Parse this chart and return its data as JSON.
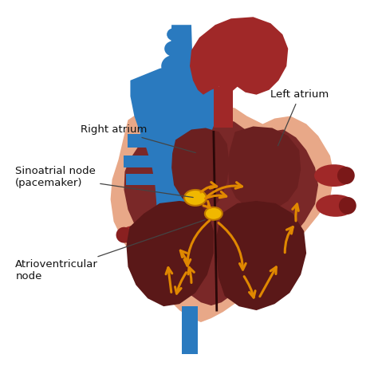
{
  "background_color": "#ffffff",
  "outer_heart_color": "#e8a888",
  "inner_dark_color": "#7a2828",
  "chamber_color": "#8b3030",
  "blue_color": "#2a7abf",
  "blue_dark": "#1a5a9f",
  "red_vessel_color": "#a02828",
  "red_bright": "#cc2222",
  "sa_node_color": "#f0b800",
  "av_node_color": "#f0b800",
  "conduction_color": "#e08800",
  "text_color": "#111111",
  "line_color": "#444444",
  "labels": {
    "left_atrium": "Left atrium",
    "right_atrium": "Right atrium",
    "sa_node": "Sinoatrial node\n(pacemaker)",
    "av_node": "Atrioventricular\nnode"
  }
}
